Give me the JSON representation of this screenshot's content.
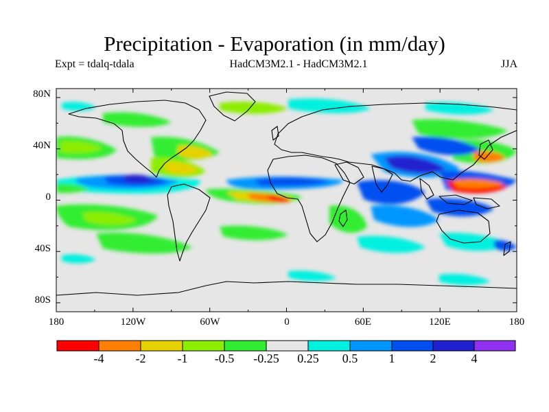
{
  "title": "Precipitation - Evaporation (in mm/day)",
  "expt_label": "Expt = tdalq-tdala",
  "models_label": "HadCM3M2.1 - HadCM3M2.1",
  "season_label": "JJA",
  "lat_ticks": [
    "80N",
    "40N",
    "0",
    "40S",
    "80S"
  ],
  "lon_ticks": [
    "180",
    "120W",
    "60W",
    "0",
    "60E",
    "120E",
    "180"
  ],
  "colorbar": {
    "colors": [
      "#ff0000",
      "#ff7f00",
      "#e6d200",
      "#8ced00",
      "#31ed31",
      "#e6e6e6",
      "#00f0e0",
      "#0096ff",
      "#0050f0",
      "#2020d0",
      "#9030f0"
    ],
    "labels": [
      "-4",
      "-2",
      "-1",
      "-0.5",
      "-0.25",
      "0.25",
      "0.5",
      "1",
      "2",
      "4"
    ]
  },
  "colors": {
    "ocean": "#e6e6e6",
    "coast": "#000000"
  }
}
